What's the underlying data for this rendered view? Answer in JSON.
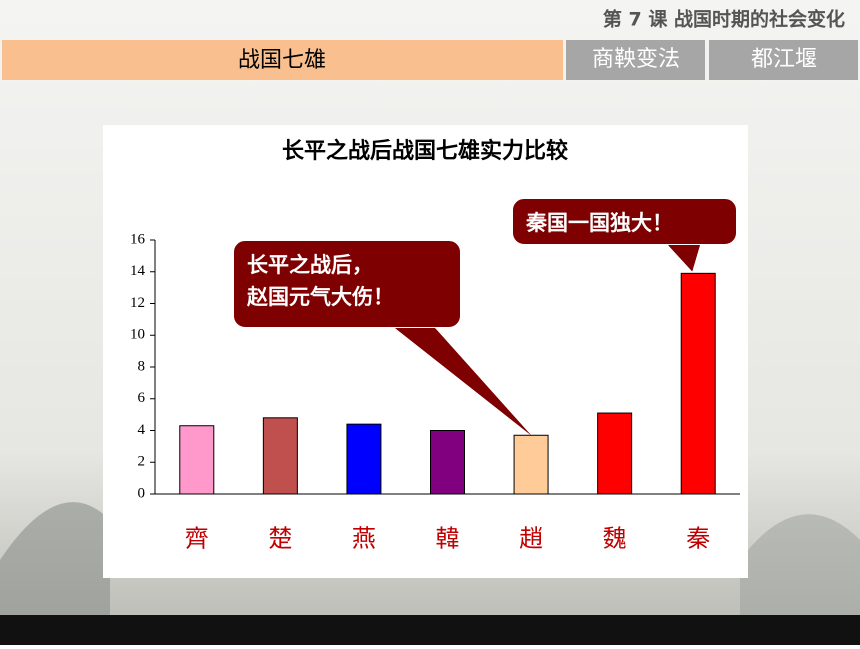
{
  "header": {
    "lesson": "第 7 课 战国时期的社会变化",
    "tabs": [
      "战国七雄",
      "商鞅变法",
      "都江堰"
    ]
  },
  "chart_data": {
    "type": "bar",
    "title": "长平之战后战国七雄实力比较",
    "categories": [
      "齊",
      "楚",
      "燕",
      "韓",
      "趙",
      "魏",
      "秦"
    ],
    "values": [
      4.3,
      4.8,
      4.4,
      4.0,
      3.7,
      5.1,
      13.9
    ],
    "colors": [
      "#ff99cc",
      "#c0504d",
      "#0000ff",
      "#800080",
      "#ffcc99",
      "#ff0000",
      "#ff0000"
    ],
    "ylim": [
      0,
      16
    ],
    "yticks": [
      0,
      2,
      4,
      6,
      8,
      10,
      12,
      14,
      16
    ],
    "grid": false,
    "annotations": [
      {
        "lines": [
          "长平之战后，",
          "赵国元气大伤！"
        ]
      },
      {
        "lines": [
          "秦国一国独大！"
        ]
      }
    ]
  }
}
